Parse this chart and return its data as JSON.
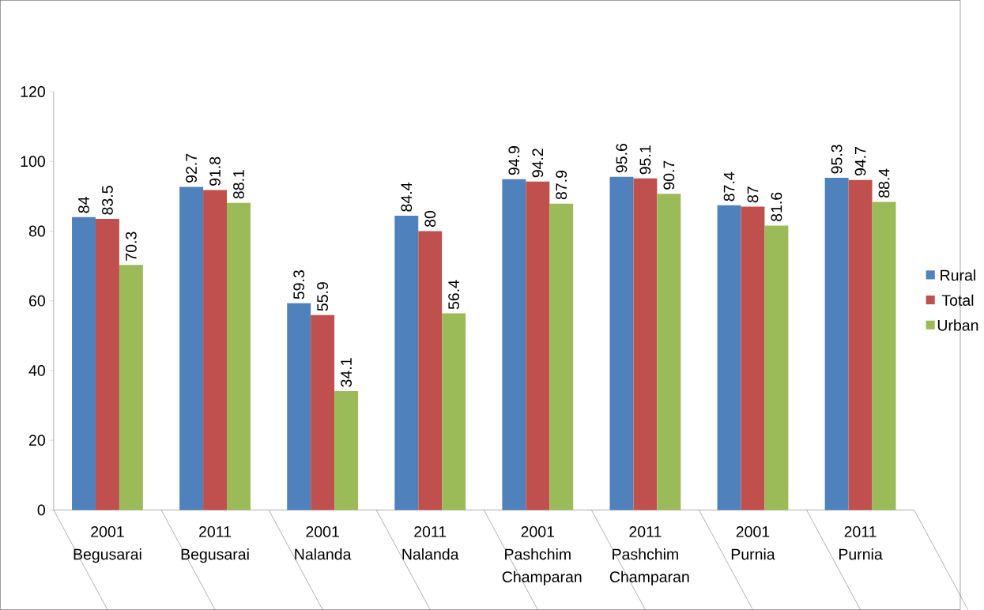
{
  "chart_data": {
    "type": "bar",
    "categories": [
      "2001 Begusarai",
      "2011 Begusarai",
      "2001 Nalanda",
      "2011 Nalanda",
      "2001 Pashchim Champaran",
      "2011 Pashchim Champaran",
      "2001 Purnia",
      "2011 Purnia"
    ],
    "series": [
      {
        "name": "Rural",
        "color": "#4f81bd",
        "values": [
          84,
          92.7,
          59.3,
          84.4,
          94.9,
          95.6,
          87.4,
          95.3
        ]
      },
      {
        "name": "Total",
        "color": "#c0504d",
        "values": [
          83.5,
          91.8,
          55.9,
          80,
          94.2,
          95.1,
          87,
          94.7
        ]
      },
      {
        "name": "Urban",
        "color": "#9bbb59",
        "values": [
          70.3,
          88.1,
          34.1,
          56.4,
          87.9,
          90.7,
          81.6,
          88.4
        ]
      }
    ],
    "ylim": [
      0,
      120
    ],
    "yticks": [
      0,
      20,
      40,
      60,
      80,
      100,
      120
    ],
    "data_labels": true,
    "legend": "right",
    "grid": false
  }
}
